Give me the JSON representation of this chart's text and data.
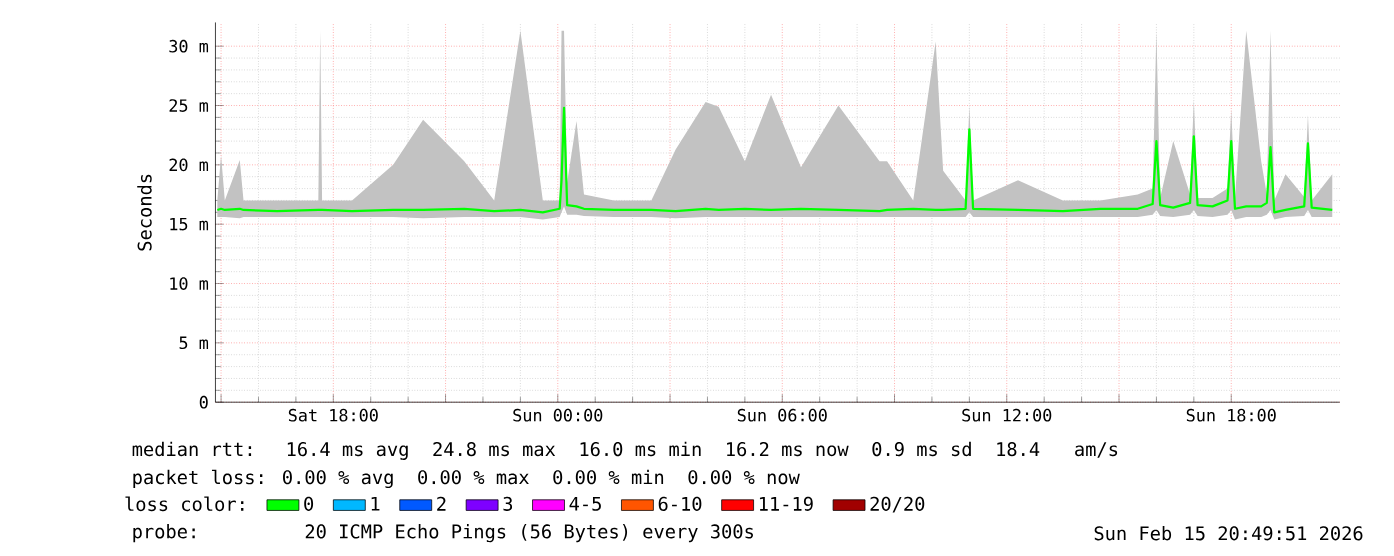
{
  "chart_data": {
    "type": "line",
    "ylabel": "Seconds",
    "xlim": [
      "2026-02-14T14:51",
      "2026-02-15T20:54"
    ],
    "ylim": [
      0,
      32
    ],
    "xticks": [
      {
        "value": "2026-02-14T15:00",
        "label": null
      },
      {
        "value": "2026-02-14T18:00",
        "label": "Sat 18:00"
      },
      {
        "value": "2026-02-14T21:00",
        "label": null
      },
      {
        "value": "2026-02-15T00:00",
        "label": "Sun 00:00"
      },
      {
        "value": "2026-02-15T03:00",
        "label": null
      },
      {
        "value": "2026-02-15T06:00",
        "label": "Sun 06:00"
      },
      {
        "value": "2026-02-15T09:00",
        "label": null
      },
      {
        "value": "2026-02-15T12:00",
        "label": "Sun 12:00"
      },
      {
        "value": "2026-02-15T15:00",
        "label": null
      },
      {
        "value": "2026-02-15T18:00",
        "label": "Sun 18:00"
      }
    ],
    "yticks": [
      0,
      {
        "value": 5,
        "label": "5 m"
      },
      {
        "value": 10,
        "label": "10 m"
      },
      {
        "value": 15,
        "label": "15 m"
      },
      {
        "value": 20,
        "label": "20 m"
      },
      {
        "value": 25,
        "label": "25 m"
      },
      {
        "value": 30,
        "label": "30 m"
      }
    ],
    "grid": true,
    "legend": "bottom",
    "legend_title": "loss color:",
    "x": [
      "2026-02-14T14:54",
      "2026-02-14T15:00",
      "2026-02-14T15:06",
      "2026-02-14T15:30",
      "2026-02-14T15:36",
      "2026-02-14T16:30",
      "2026-02-14T17:36",
      "2026-02-14T17:39",
      "2026-02-14T17:42",
      "2026-02-14T18:30",
      "2026-02-14T19:36",
      "2026-02-14T20:24",
      "2026-02-14T21:30",
      "2026-02-14T22:18",
      "2026-02-14T23:00",
      "2026-02-14T23:36",
      "2026-02-15T00:03",
      "2026-02-15T00:06",
      "2026-02-15T00:10",
      "2026-02-15T00:15",
      "2026-02-15T00:30",
      "2026-02-15T00:42",
      "2026-02-15T01:30",
      "2026-02-15T02:30",
      "2026-02-15T03:09",
      "2026-02-15T03:57",
      "2026-02-15T04:18",
      "2026-02-15T05:00",
      "2026-02-15T05:42",
      "2026-02-15T06:30",
      "2026-02-15T07:30",
      "2026-02-15T08:36",
      "2026-02-15T08:48",
      "2026-02-15T09:30",
      "2026-02-15T10:06",
      "2026-02-15T10:18",
      "2026-02-15T10:54",
      "2026-02-15T11:00",
      "2026-02-15T11:06",
      "2026-02-15T12:18",
      "2026-02-15T13:30",
      "2026-02-15T14:30",
      "2026-02-15T15:30",
      "2026-02-15T15:54",
      "2026-02-15T16:00",
      "2026-02-15T16:06",
      "2026-02-15T16:27",
      "2026-02-15T16:54",
      "2026-02-15T17:00",
      "2026-02-15T17:06",
      "2026-02-15T17:30",
      "2026-02-15T17:54",
      "2026-02-15T18:00",
      "2026-02-15T18:06",
      "2026-02-15T18:24",
      "2026-02-15T18:48",
      "2026-02-15T18:57",
      "2026-02-15T19:03",
      "2026-02-15T19:09",
      "2026-02-15T19:27",
      "2026-02-15T19:57",
      "2026-02-15T20:03",
      "2026-02-15T20:09",
      "2026-02-15T20:42"
    ],
    "series": [
      {
        "name": "0",
        "color": "#00ff00",
        "values": [
          16.2,
          16.3,
          16.2,
          16.3,
          16.2,
          16.1,
          16.2,
          16.2,
          16.2,
          16.1,
          16.2,
          16.2,
          16.3,
          16.1,
          16.2,
          16.0,
          16.3,
          18.7,
          24.8,
          16.6,
          16.5,
          16.3,
          16.2,
          16.2,
          16.1,
          16.3,
          16.2,
          16.3,
          16.2,
          16.3,
          16.2,
          16.1,
          16.2,
          16.3,
          16.2,
          16.2,
          16.3,
          23.0,
          16.3,
          16.2,
          16.1,
          16.3,
          16.3,
          16.7,
          22.0,
          16.6,
          16.4,
          16.8,
          22.4,
          16.6,
          16.5,
          17.0,
          22.0,
          16.3,
          16.5,
          16.5,
          16.8,
          21.5,
          16.0,
          16.2,
          16.5,
          21.8,
          16.4,
          16.2
        ],
        "lower": [
          15.6,
          15.6,
          15.6,
          15.5,
          15.6,
          15.6,
          15.6,
          15.6,
          15.6,
          15.6,
          15.6,
          15.5,
          15.6,
          15.6,
          15.6,
          15.4,
          15.6,
          16.0,
          16.5,
          15.8,
          15.8,
          15.7,
          15.6,
          15.6,
          15.5,
          15.6,
          15.6,
          15.6,
          15.6,
          15.6,
          15.6,
          15.6,
          15.6,
          15.6,
          15.6,
          15.6,
          15.6,
          16.0,
          15.6,
          15.6,
          15.6,
          15.6,
          15.6,
          15.8,
          16.2,
          15.7,
          15.6,
          15.8,
          16.2,
          15.7,
          15.6,
          15.8,
          16.2,
          15.4,
          15.6,
          15.6,
          15.8,
          16.2,
          15.4,
          15.6,
          15.7,
          16.2,
          15.6,
          15.6
        ],
        "upper": [
          17.0,
          20.8,
          17.0,
          20.4,
          17.0,
          17.0,
          17.0,
          31.3,
          17.0,
          17.0,
          20.0,
          23.8,
          20.3,
          17.0,
          31.3,
          17.0,
          17.0,
          31.3,
          31.3,
          18.5,
          23.7,
          17.5,
          17.0,
          17.0,
          21.3,
          25.3,
          24.9,
          20.3,
          25.9,
          19.8,
          25.0,
          20.3,
          20.3,
          17.0,
          30.4,
          19.5,
          17.0,
          25.0,
          17.0,
          18.7,
          17.0,
          17.0,
          17.5,
          18.0,
          31.3,
          17.2,
          22.0,
          17.5,
          25.5,
          17.2,
          17.2,
          18.0,
          24.7,
          17.2,
          31.3,
          20.3,
          17.5,
          31.3,
          17.0,
          19.2,
          17.3,
          24.2,
          17.0,
          19.2
        ]
      },
      {
        "name": "1",
        "color": "#00b8ff",
        "values": [
          null,
          null,
          null,
          null,
          null,
          null,
          null,
          null,
          null,
          null,
          null,
          null,
          null,
          null,
          null,
          null,
          null,
          null,
          null,
          null,
          null,
          null,
          null,
          null,
          null,
          null,
          null,
          null,
          null,
          null,
          null,
          null,
          null,
          null,
          null,
          null,
          null,
          null,
          null,
          null,
          null,
          null,
          null,
          null,
          null,
          null,
          null,
          null,
          null,
          null,
          null,
          null,
          null,
          null,
          null,
          null,
          null,
          null,
          null,
          null,
          null,
          null,
          null,
          null
        ]
      },
      {
        "name": "2",
        "color": "#0059ff",
        "values": [
          null,
          null,
          null,
          null,
          null,
          null,
          null,
          null,
          null,
          null,
          null,
          null,
          null,
          null,
          null,
          null,
          null,
          null,
          null,
          null,
          null,
          null,
          null,
          null,
          null,
          null,
          null,
          null,
          null,
          null,
          null,
          null,
          null,
          null,
          null,
          null,
          null,
          null,
          null,
          null,
          null,
          null,
          null,
          null,
          null,
          null,
          null,
          null,
          null,
          null,
          null,
          null,
          null,
          null,
          null,
          null,
          null,
          null,
          null,
          null,
          null,
          null,
          null,
          null
        ]
      },
      {
        "name": "3",
        "color": "#7e00ff",
        "values": [
          null,
          null,
          null,
          null,
          null,
          null,
          null,
          null,
          null,
          null,
          null,
          null,
          null,
          null,
          null,
          null,
          null,
          null,
          null,
          null,
          null,
          null,
          null,
          null,
          null,
          null,
          null,
          null,
          null,
          null,
          null,
          null,
          null,
          null,
          null,
          null,
          null,
          null,
          null,
          null,
          null,
          null,
          null,
          null,
          null,
          null,
          null,
          null,
          null,
          null,
          null,
          null,
          null,
          null,
          null,
          null,
          null,
          null,
          null,
          null,
          null,
          null,
          null,
          null
        ]
      },
      {
        "name": "4-5",
        "color": "#ff00ff",
        "values": [
          null,
          null,
          null,
          null,
          null,
          null,
          null,
          null,
          null,
          null,
          null,
          null,
          null,
          null,
          null,
          null,
          null,
          null,
          null,
          null,
          null,
          null,
          null,
          null,
          null,
          null,
          null,
          null,
          null,
          null,
          null,
          null,
          null,
          null,
          null,
          null,
          null,
          null,
          null,
          null,
          null,
          null,
          null,
          null,
          null,
          null,
          null,
          null,
          null,
          null,
          null,
          null,
          null,
          null,
          null,
          null,
          null,
          null,
          null,
          null,
          null,
          null,
          null,
          null
        ]
      },
      {
        "name": "6-10",
        "color": "#ff5500",
        "values": [
          null,
          null,
          null,
          null,
          null,
          null,
          null,
          null,
          null,
          null,
          null,
          null,
          null,
          null,
          null,
          null,
          null,
          null,
          null,
          null,
          null,
          null,
          null,
          null,
          null,
          null,
          null,
          null,
          null,
          null,
          null,
          null,
          null,
          null,
          null,
          null,
          null,
          null,
          null,
          null,
          null,
          null,
          null,
          null,
          null,
          null,
          null,
          null,
          null,
          null,
          null,
          null,
          null,
          null,
          null,
          null,
          null,
          null,
          null,
          null,
          null,
          null,
          null,
          null
        ]
      },
      {
        "name": "11-19",
        "color": "#ff0000",
        "values": [
          null,
          null,
          null,
          null,
          null,
          null,
          null,
          null,
          null,
          null,
          null,
          null,
          null,
          null,
          null,
          null,
          null,
          null,
          null,
          null,
          null,
          null,
          null,
          null,
          null,
          null,
          null,
          null,
          null,
          null,
          null,
          null,
          null,
          null,
          null,
          null,
          null,
          null,
          null,
          null,
          null,
          null,
          null,
          null,
          null,
          null,
          null,
          null,
          null,
          null,
          null,
          null,
          null,
          null,
          null,
          null,
          null,
          null,
          null,
          null,
          null,
          null,
          null,
          null
        ]
      },
      {
        "name": "20/20",
        "color": "#a10000",
        "values": [
          null,
          null,
          null,
          null,
          null,
          null,
          null,
          null,
          null,
          null,
          null,
          null,
          null,
          null,
          null,
          null,
          null,
          null,
          null,
          null,
          null,
          null,
          null,
          null,
          null,
          null,
          null,
          null,
          null,
          null,
          null,
          null,
          null,
          null,
          null,
          null,
          null,
          null,
          null,
          null,
          null,
          null,
          null,
          null,
          null,
          null,
          null,
          null,
          null,
          null,
          null,
          null,
          null,
          null,
          null,
          null,
          null,
          null,
          null,
          null,
          null,
          null,
          null,
          null
        ]
      }
    ],
    "annotations": [
      "median rtt:  16.4 ms avg  24.8 ms max  16.0 ms min  16.2 ms now  0.9 ms sd  18.4   am/s",
      "packet loss: 0.00 % avg  0.00 % max  0.00 % min  0.00 % now",
      "probe:       20 ICMP Echo Pings (56 Bytes) every 300s",
      "Sun Feb 15 20:49:51 2026"
    ]
  }
}
